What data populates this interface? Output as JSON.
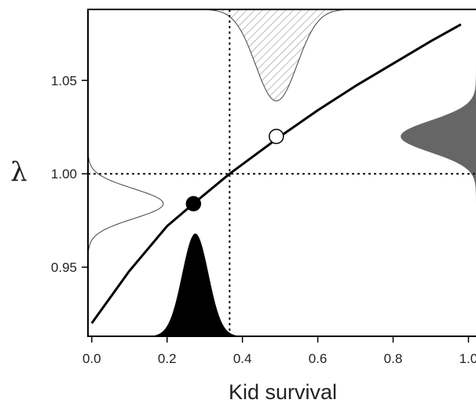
{
  "chart_data": {
    "type": "line",
    "title": "",
    "xlabel": "Kid survival",
    "ylabel": "λ",
    "xlim": [
      -0.01,
      1.02
    ],
    "ylim": [
      0.913,
      1.088
    ],
    "grid": false,
    "xticks": [
      0.0,
      0.2,
      0.4,
      0.6,
      0.8,
      1.0
    ],
    "xtick_labels": [
      "0.0",
      "0.2",
      "0.4",
      "0.6",
      "0.8",
      "1.0"
    ],
    "yticks": [
      0.95,
      1.0,
      1.05
    ],
    "ytick_labels": [
      "0.95",
      "1.00",
      "1.05"
    ],
    "series": [
      {
        "kind": "curve",
        "x": [
          0.0,
          0.1,
          0.2,
          0.27,
          0.366,
          0.5,
          0.6,
          0.7,
          0.8,
          0.9,
          0.98
        ],
        "y": [
          0.92,
          0.948,
          0.972,
          0.984,
          1.0,
          1.02,
          1.034,
          1.047,
          1.059,
          1.071,
          1.08
        ]
      }
    ],
    "reference_lines": [
      {
        "orientation": "horizontal",
        "value": 1.0,
        "style": "dotted"
      },
      {
        "orientation": "vertical",
        "value": 0.366,
        "style": "dotted"
      }
    ],
    "points": [
      {
        "x": 0.27,
        "y": 0.984,
        "fill": "filled"
      },
      {
        "x": 0.49,
        "y": 1.02,
        "fill": "open"
      }
    ],
    "distributions": [
      {
        "axis": "bottom",
        "center": 0.275,
        "sd": 0.035,
        "height": 0.055,
        "fill": "black"
      },
      {
        "axis": "top",
        "center": 0.49,
        "sd": 0.055,
        "height": 0.049,
        "fill": "hatched"
      },
      {
        "axis": "left",
        "center": 0.984,
        "sd": 0.008,
        "height": 0.2,
        "fill": "none"
      },
      {
        "axis": "right",
        "center": 1.02,
        "sd": 0.0085,
        "height": 0.2,
        "fill": "#666666"
      }
    ]
  }
}
